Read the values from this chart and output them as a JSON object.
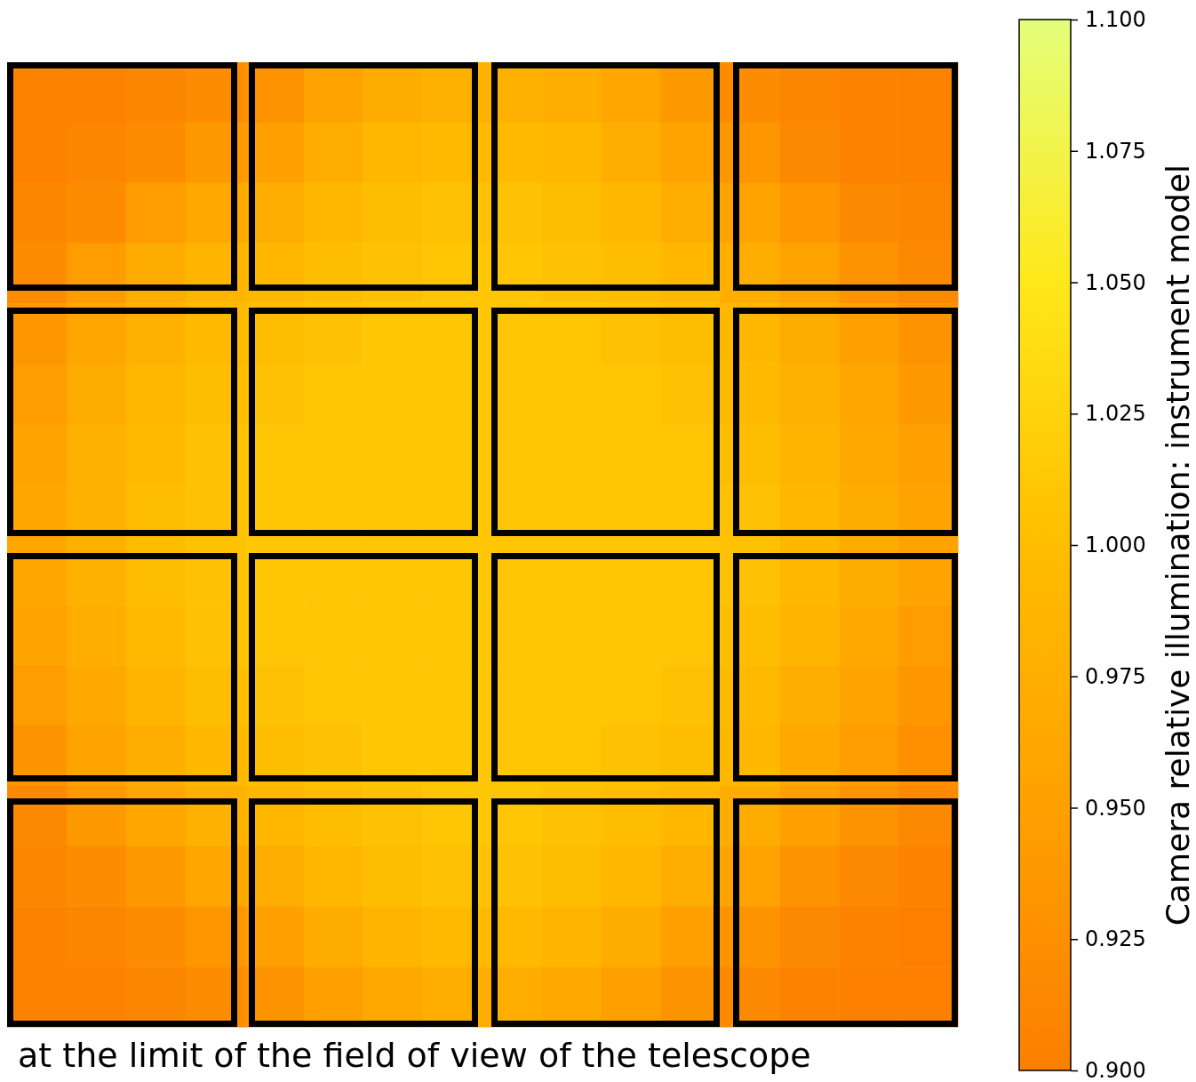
{
  "chart_data": {
    "type": "heatmap",
    "clabel": "Camera relative illumination: instrument model",
    "annotations": [
      "at the limit of the field of view of the telescope"
    ],
    "tick_labels": false,
    "categories": [
      null,
      null,
      null,
      null,
      null,
      null,
      null,
      null,
      null,
      null,
      null,
      null,
      null,
      null,
      null,
      null
    ],
    "y_categories": [
      null,
      null,
      null,
      null,
      null,
      null,
      null,
      null,
      null,
      null,
      null,
      null,
      null,
      null,
      null,
      null
    ],
    "clim": [
      0.9,
      1.1
    ],
    "cticks": [
      {
        "value": 0.9,
        "label": "0.900"
      },
      {
        "value": 0.925,
        "label": "0.925"
      },
      {
        "value": 0.95,
        "label": "0.950"
      },
      {
        "value": 0.975,
        "label": "0.975"
      },
      {
        "value": 1.0,
        "label": "1.000"
      },
      {
        "value": 1.025,
        "label": "1.025"
      },
      {
        "value": 1.05,
        "label": "1.050"
      },
      {
        "value": 1.075,
        "label": "1.075"
      },
      {
        "value": 1.1,
        "label": "1.100"
      }
    ],
    "cells": [
      [
        0.905,
        0.905,
        0.91,
        0.92,
        0.93,
        0.955,
        0.97,
        0.98,
        0.98,
        0.975,
        0.96,
        0.94,
        0.92,
        0.91,
        0.905,
        0.905
      ],
      [
        0.905,
        0.91,
        0.92,
        0.94,
        0.95,
        0.975,
        0.99,
        0.995,
        0.995,
        0.99,
        0.975,
        0.955,
        0.935,
        0.915,
        0.905,
        0.905
      ],
      [
        0.91,
        0.92,
        0.945,
        0.965,
        0.975,
        0.99,
        1.0,
        1.005,
        1.005,
        1.0,
        0.99,
        0.975,
        0.955,
        0.935,
        0.915,
        0.91
      ],
      [
        0.92,
        0.945,
        0.97,
        0.985,
        0.99,
        1.0,
        1.005,
        1.01,
        1.01,
        1.005,
        1.0,
        0.99,
        0.975,
        0.955,
        0.93,
        0.915
      ],
      [
        0.935,
        0.96,
        0.98,
        0.995,
        1.0,
        1.005,
        1.01,
        1.01,
        1.01,
        1.01,
        1.005,
        1.0,
        0.99,
        0.97,
        0.95,
        0.93
      ],
      [
        0.945,
        0.97,
        0.99,
        1.0,
        1.005,
        1.01,
        1.01,
        1.01,
        1.01,
        1.01,
        1.01,
        1.005,
        0.995,
        0.98,
        0.96,
        0.94
      ],
      [
        0.955,
        0.98,
        0.995,
        1.005,
        1.01,
        1.01,
        1.01,
        1.01,
        1.01,
        1.01,
        1.01,
        1.01,
        1.0,
        0.985,
        0.965,
        0.95
      ],
      [
        0.96,
        0.98,
        1.0,
        1.005,
        1.01,
        1.01,
        1.01,
        1.01,
        1.01,
        1.01,
        1.01,
        1.01,
        1.005,
        0.99,
        0.97,
        0.955
      ],
      [
        0.96,
        0.98,
        1.0,
        1.005,
        1.01,
        1.01,
        1.01,
        1.01,
        1.01,
        1.01,
        1.01,
        1.01,
        1.005,
        0.99,
        0.97,
        0.955
      ],
      [
        0.955,
        0.975,
        0.995,
        1.005,
        1.01,
        1.01,
        1.01,
        1.01,
        1.01,
        1.01,
        1.01,
        1.01,
        1.0,
        0.985,
        0.965,
        0.945
      ],
      [
        0.945,
        0.965,
        0.985,
        1.0,
        1.005,
        1.01,
        1.01,
        1.01,
        1.01,
        1.01,
        1.01,
        1.005,
        0.995,
        0.975,
        0.955,
        0.935
      ],
      [
        0.93,
        0.955,
        0.975,
        0.99,
        1.0,
        1.005,
        1.01,
        1.01,
        1.01,
        1.01,
        1.005,
        1.0,
        0.99,
        0.965,
        0.945,
        0.925
      ],
      [
        0.915,
        0.94,
        0.96,
        0.98,
        0.99,
        1.0,
        1.005,
        1.01,
        1.01,
        1.005,
        1.0,
        0.99,
        0.97,
        0.95,
        0.93,
        0.915
      ],
      [
        0.91,
        0.92,
        0.94,
        0.96,
        0.975,
        0.99,
        1.0,
        1.005,
        1.005,
        1.0,
        0.99,
        0.975,
        0.955,
        0.93,
        0.915,
        0.905
      ],
      [
        0.905,
        0.91,
        0.92,
        0.935,
        0.95,
        0.97,
        0.985,
        0.995,
        0.995,
        0.985,
        0.97,
        0.95,
        0.93,
        0.915,
        0.905,
        0.9
      ],
      [
        0.905,
        0.905,
        0.91,
        0.92,
        0.93,
        0.95,
        0.965,
        0.975,
        0.975,
        0.965,
        0.95,
        0.93,
        0.915,
        0.905,
        0.9,
        0.9
      ]
    ]
  }
}
